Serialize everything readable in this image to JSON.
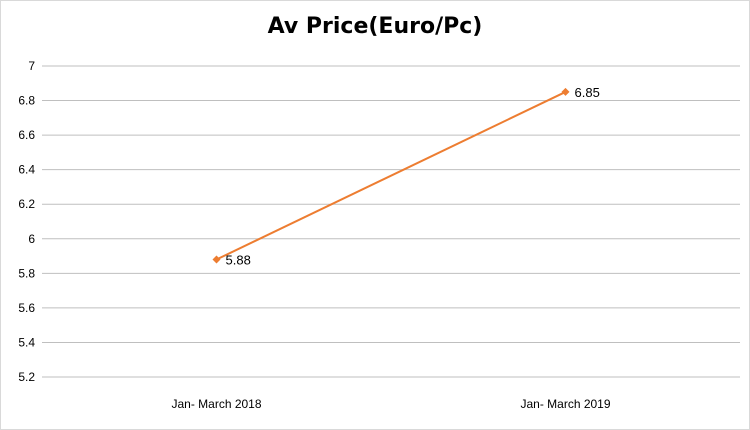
{
  "chart_data": {
    "type": "line",
    "title": "Av Price(Euro/Pc)",
    "categories": [
      "Jan- March 2018",
      "Jan- March 2019"
    ],
    "series": [
      {
        "values": [
          5.88,
          6.85
        ],
        "color": "#ed7d31"
      }
    ],
    "data_labels": [
      "5.88",
      "6.85"
    ],
    "y_ticks": [
      "5.2",
      "5.4",
      "5.6",
      "5.8",
      "6",
      "6.2",
      "6.4",
      "6.6",
      "6.8",
      "7"
    ],
    "ylim": [
      5.2,
      7
    ],
    "grid": true,
    "legend": "none",
    "gridline_color": "#bfbfbf"
  }
}
